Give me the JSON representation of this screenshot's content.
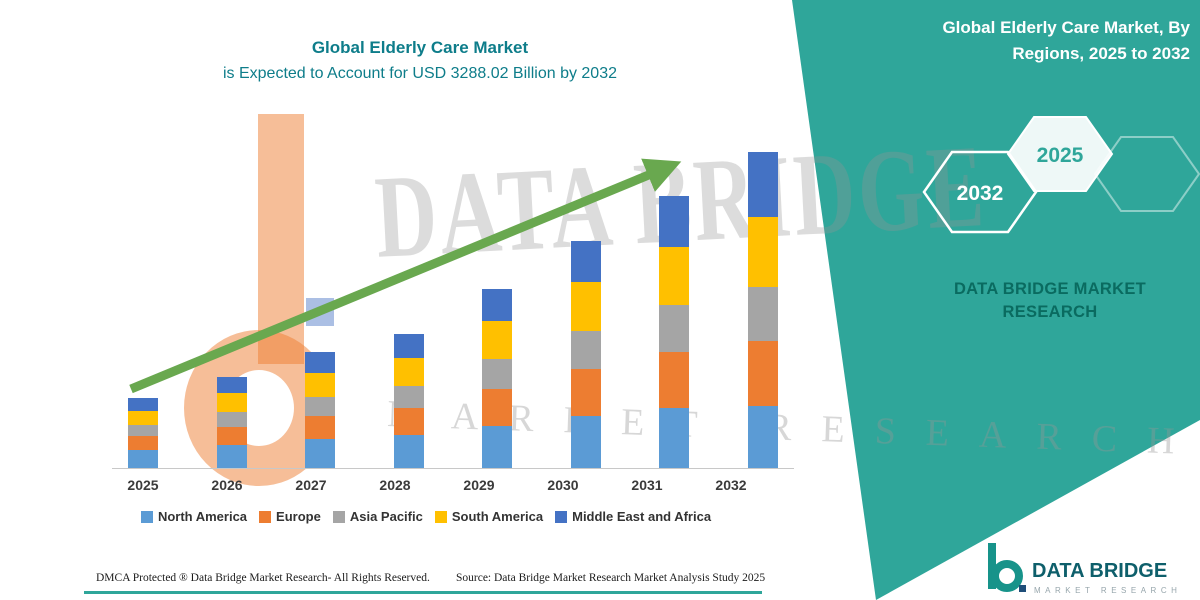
{
  "page": {
    "right_panel_title_line1": "Global Elderly Care Market, By",
    "right_panel_title_line2": "Regions, 2025 to 2032",
    "chart_title_line1": "Global Elderly Care Market",
    "chart_title_line2": "is Expected to Account for USD 3288.02 Billion by 2032",
    "hexagon_left_label": "2032",
    "hexagon_right_label": "2025",
    "brand_line1": "DATA BRIDGE MARKET",
    "brand_line2": "RESEARCH",
    "watermark_line1": "DATA BRIDGE",
    "watermark_line2": "MARKET RESEARCH",
    "footer_dmca": "DMCA Protected ® Data Bridge Market Research-  All Rights Reserved.",
    "footer_source": "Source: Data Bridge Market Research  Market Analysis Study 2025",
    "logo_name": "DATA BRIDGE",
    "logo_sub": "MARKET RESEARCH"
  },
  "colors": {
    "teal_background": "#2FA69A",
    "title_text": "#0E7D8A",
    "arrow_green": "#69A84F",
    "brand_text": "#0A6B60",
    "north_america": "#5B9BD5",
    "europe": "#ED7D31",
    "asia_pacific": "#A5A5A5",
    "south_america": "#FFC000",
    "middle_east_africa": "#4472C4"
  },
  "chart_data": {
    "type": "bar",
    "stacked": true,
    "title": "Global Elderly Care Market is Expected to Account for USD 3288.02 Billion by 2032",
    "categories": [
      "2025",
      "2026",
      "2027",
      "2028",
      "2029",
      "2030",
      "2031",
      "2032"
    ],
    "series": [
      {
        "name": "North America",
        "color": "#5B9BD5",
        "values": [
          190,
          240,
          300,
          340,
          440,
          545,
          630,
          650
        ]
      },
      {
        "name": "Europe",
        "color": "#ED7D31",
        "values": [
          145,
          192,
          246,
          286,
          382,
          485,
          580,
          670
        ]
      },
      {
        "name": "Asia Pacific",
        "color": "#A5A5A5",
        "values": [
          110,
          148,
          192,
          226,
          310,
          400,
          490,
          570
        ]
      },
      {
        "name": "South America",
        "color": "#FFC000",
        "values": [
          150,
          198,
          255,
          296,
          398,
          505,
          600,
          730
        ]
      },
      {
        "name": "Middle East and Africa",
        "color": "#4472C4",
        "values": [
          136,
          172,
          218,
          251,
          338,
          434,
          529,
          668
        ]
      }
    ],
    "totals": [
      731,
      950,
      1211,
      1399,
      1868,
      2369,
      2829,
      3288
    ],
    "units": "USD Billion",
    "xlabel": "",
    "ylabel": "",
    "ylim": [
      0,
      3500
    ],
    "grid": false,
    "legend_position": "bottom",
    "annotations": [
      "green upward trend arrow from 2025 bar to 2032 bar"
    ]
  }
}
